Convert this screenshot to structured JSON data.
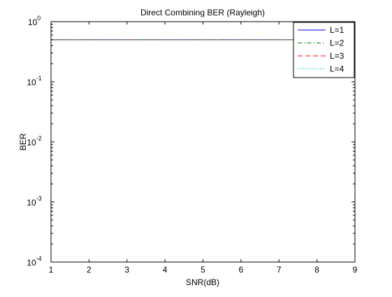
{
  "chart_data": {
    "type": "line",
    "title": "Direct Combining BER (Rayleigh)",
    "xlabel": "SNR(dB)",
    "ylabel": "BER",
    "xlim": [
      1,
      9
    ],
    "ylim": [
      0.0001,
      1
    ],
    "yscale": "log",
    "xticks": [
      "1",
      "2",
      "3",
      "4",
      "5",
      "6",
      "7",
      "8",
      "9"
    ],
    "yticks": [
      {
        "base": "10",
        "exp": "-4"
      },
      {
        "base": "10",
        "exp": "-3"
      },
      {
        "base": "10",
        "exp": "-2"
      },
      {
        "base": "10",
        "exp": "-1"
      },
      {
        "base": "10",
        "exp": "0"
      }
    ],
    "grid": false,
    "legend_position": "top-right",
    "series": [
      {
        "name": "L=1",
        "style": "solid",
        "color": "#0000ff",
        "x": [
          1,
          2,
          3,
          4,
          5,
          6,
          7,
          8,
          9
        ],
        "y": [
          0.5,
          0.5,
          0.5,
          0.5,
          0.5,
          0.5,
          0.5,
          0.5,
          0.5
        ]
      },
      {
        "name": "L=2",
        "style": "dashdot",
        "color": "#008000",
        "x": [
          1,
          2,
          3,
          4,
          5,
          6,
          7,
          8,
          9
        ],
        "y": [
          0.5,
          0.5,
          0.5,
          0.5,
          0.5,
          0.5,
          0.5,
          0.5,
          0.5
        ]
      },
      {
        "name": "L=3",
        "style": "dashed",
        "color": "#ff0000",
        "x": [
          1,
          2,
          3,
          4,
          5,
          6,
          7,
          8,
          9
        ],
        "y": [
          0.5,
          0.5,
          0.5,
          0.5,
          0.5,
          0.5,
          0.5,
          0.5,
          0.5
        ]
      },
      {
        "name": "L=4",
        "style": "dotted",
        "color": "#00bfbf",
        "x": [
          1,
          2,
          3,
          4,
          5,
          6,
          7,
          8,
          9
        ],
        "y": [
          0.5,
          0.5,
          0.5,
          0.5,
          0.5,
          0.5,
          0.5,
          0.5,
          0.5
        ]
      }
    ]
  }
}
